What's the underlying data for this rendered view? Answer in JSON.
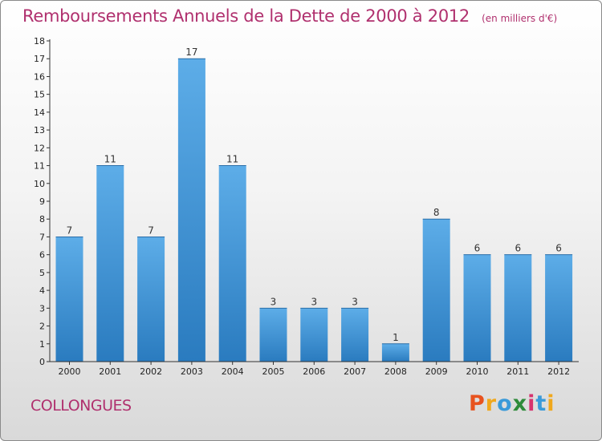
{
  "header": {
    "title": "Remboursements Annuels de la Dette de 2000 à 2012",
    "subtitle": "(en milliers d'€)"
  },
  "footer": {
    "commune": "COLLONGUES",
    "brand": "Proxiti"
  },
  "colors": {
    "title": "#b0306e",
    "bar_top": "#5dade8",
    "bar_bottom": "#2a7bbf",
    "axis": "#333333",
    "brand_letters": [
      "#e8531f",
      "#f0a81c",
      "#3a9ad9",
      "#2e8b3a",
      "#d6326e",
      "#3a9ad9",
      "#f0a81c"
    ]
  },
  "chart_data": {
    "type": "bar",
    "title": "Remboursements Annuels de la Dette de 2000 à 2012",
    "subtitle": "(en milliers d'€)",
    "categories": [
      "2000",
      "2001",
      "2002",
      "2003",
      "2004",
      "2005",
      "2006",
      "2007",
      "2008",
      "2009",
      "2010",
      "2011",
      "2012"
    ],
    "values": [
      7,
      11,
      7,
      17,
      11,
      3,
      3,
      3,
      1,
      8,
      6,
      6,
      6
    ],
    "data_labels": [
      "7",
      "11",
      "7",
      "17",
      "11",
      "3",
      "3",
      "3",
      "1",
      "8",
      "6",
      "6",
      "6"
    ],
    "ylim": [
      0,
      18
    ],
    "yticks": [
      0,
      1,
      2,
      3,
      4,
      5,
      6,
      7,
      8,
      9,
      10,
      11,
      12,
      13,
      14,
      15,
      16,
      17,
      18
    ],
    "ytick_labels": [
      "0",
      "1",
      "2",
      "3",
      "4",
      "5",
      "6",
      "7",
      "8",
      "9",
      "10",
      "11",
      "12",
      "13",
      "14",
      "15",
      "16",
      "17",
      "18"
    ],
    "xlabel": "",
    "ylabel": "",
    "grid": false,
    "legend": "none"
  }
}
